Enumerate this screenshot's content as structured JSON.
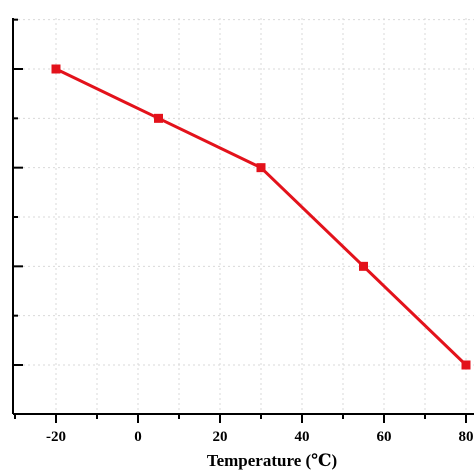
{
  "chart_data": {
    "type": "line",
    "title": "",
    "xlabel": "Temperature (℃)",
    "ylabel": "",
    "x_ticks": [
      "-20",
      "0",
      "20",
      "40",
      "60",
      "80"
    ],
    "xlim": [
      -30,
      80
    ],
    "y_tick_labels_visible": false,
    "grid": true,
    "legend": "none",
    "series": [
      {
        "x": [
          -20,
          5,
          30,
          55,
          80
        ],
        "y": [
          6,
          5,
          4,
          2,
          0
        ],
        "color": "#e3121b",
        "marker": "square"
      }
    ],
    "ylim": [
      -1,
      7.4
    ]
  }
}
